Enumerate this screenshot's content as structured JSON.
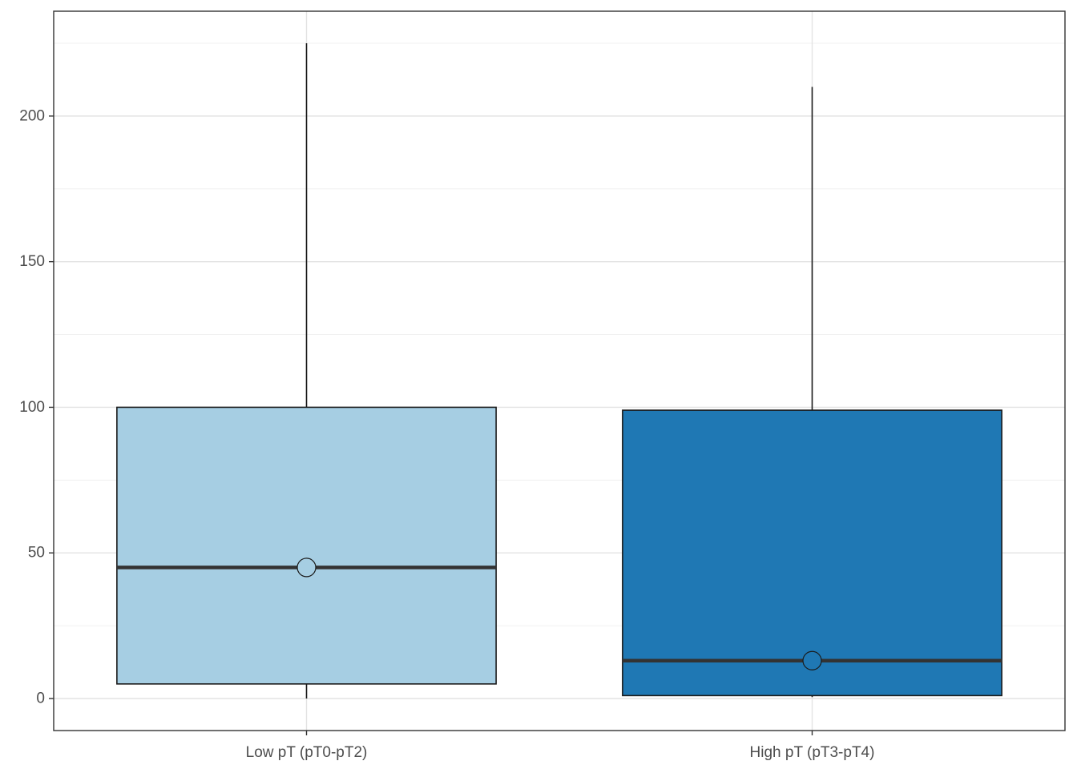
{
  "chart_data": {
    "type": "boxplot",
    "title": "",
    "xlabel": "",
    "ylabel": "",
    "ylim": [
      -11,
      236
    ],
    "yticks": [
      0,
      50,
      100,
      150,
      200
    ],
    "grid": true,
    "legend": "none",
    "categories": [
      "Low pT (pT0-pT2)",
      "High pT (pT3-pT4)"
    ],
    "boxes": [
      {
        "category": "Low pT (pT0-pT2)",
        "min": 0,
        "q1": 5,
        "median": 45,
        "q3": 100,
        "max": 225,
        "fill": "#a6cee3"
      },
      {
        "category": "High pT (pT3-pT4)",
        "min": 0.5,
        "q1": 1,
        "median": 13,
        "q3": 99,
        "max": 210,
        "fill": "#1f78b4"
      }
    ]
  }
}
